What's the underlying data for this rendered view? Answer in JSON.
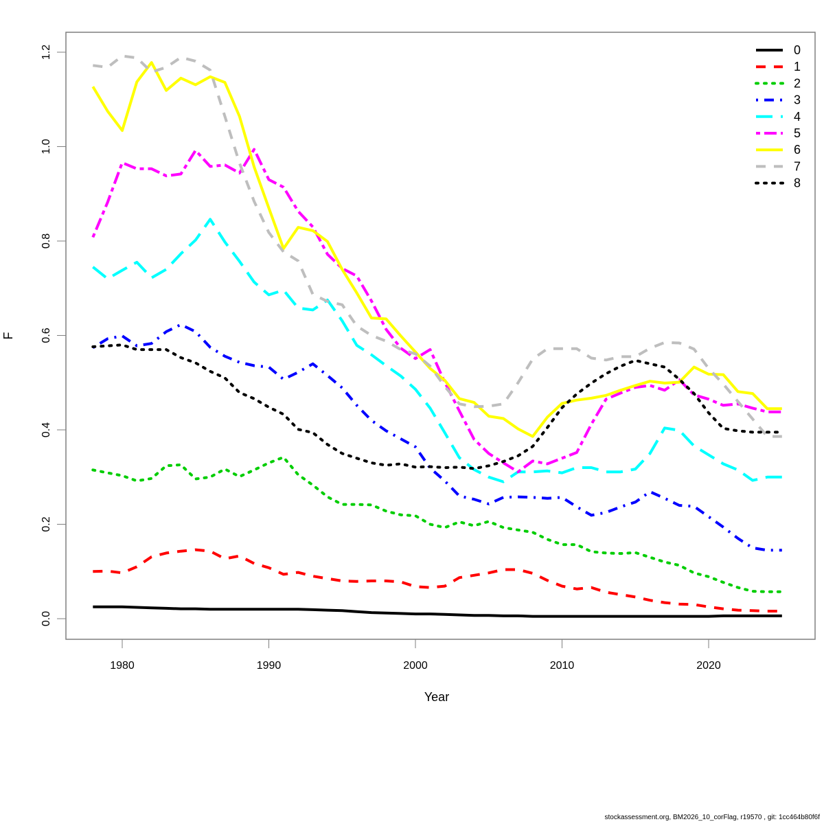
{
  "chart_data": {
    "type": "line",
    "title": "",
    "xlabel": "Year",
    "ylabel": "F",
    "xlim": [
      1978,
      2025
    ],
    "ylim": [
      0,
      1.2
    ],
    "x_ticks": [
      1980,
      1990,
      2000,
      2010,
      2020
    ],
    "y_ticks": [
      "0.0",
      "0.2",
      "0.4",
      "0.6",
      "0.8",
      "1.0",
      "1.2"
    ],
    "grid": false,
    "legend_position": "top-right",
    "x": [
      1978,
      1979,
      1980,
      1981,
      1982,
      1983,
      1984,
      1985,
      1986,
      1987,
      1988,
      1989,
      1990,
      1991,
      1992,
      1993,
      1994,
      1995,
      1996,
      1997,
      1998,
      1999,
      2000,
      2001,
      2002,
      2003,
      2004,
      2005,
      2006,
      2007,
      2008,
      2009,
      2010,
      2011,
      2012,
      2013,
      2014,
      2015,
      2016,
      2017,
      2018,
      2019,
      2020,
      2021,
      2022,
      2023,
      2024,
      2025
    ],
    "series": [
      {
        "name": "0",
        "color": "#000000",
        "dash": "solid",
        "width": 4,
        "values": [
          0.025,
          0.025,
          0.025,
          0.024,
          0.023,
          0.022,
          0.021,
          0.021,
          0.02,
          0.02,
          0.02,
          0.02,
          0.02,
          0.02,
          0.02,
          0.019,
          0.018,
          0.017,
          0.015,
          0.013,
          0.012,
          0.011,
          0.01,
          0.01,
          0.009,
          0.008,
          0.007,
          0.007,
          0.006,
          0.006,
          0.005,
          0.005,
          0.005,
          0.005,
          0.005,
          0.005,
          0.005,
          0.005,
          0.005,
          0.005,
          0.005,
          0.005,
          0.005,
          0.006,
          0.006,
          0.006,
          0.006,
          0.006
        ]
      },
      {
        "name": "1",
        "color": "#ff0000",
        "dash": "dashed",
        "width": 4,
        "values": [
          0.1,
          0.101,
          0.097,
          0.11,
          0.131,
          0.139,
          0.143,
          0.146,
          0.143,
          0.127,
          0.133,
          0.117,
          0.108,
          0.094,
          0.098,
          0.09,
          0.085,
          0.08,
          0.079,
          0.08,
          0.08,
          0.078,
          0.068,
          0.066,
          0.069,
          0.087,
          0.092,
          0.097,
          0.104,
          0.104,
          0.096,
          0.081,
          0.069,
          0.063,
          0.066,
          0.056,
          0.051,
          0.046,
          0.039,
          0.034,
          0.031,
          0.03,
          0.025,
          0.021,
          0.018,
          0.017,
          0.016,
          0.016
        ]
      },
      {
        "name": "2",
        "color": "#00cd00",
        "dash": "dotted",
        "width": 4,
        "values": [
          0.315,
          0.309,
          0.303,
          0.292,
          0.297,
          0.324,
          0.326,
          0.296,
          0.3,
          0.317,
          0.301,
          0.315,
          0.33,
          0.342,
          0.305,
          0.283,
          0.258,
          0.242,
          0.242,
          0.241,
          0.228,
          0.22,
          0.218,
          0.2,
          0.193,
          0.205,
          0.197,
          0.206,
          0.193,
          0.188,
          0.183,
          0.168,
          0.157,
          0.157,
          0.142,
          0.139,
          0.138,
          0.14,
          0.13,
          0.12,
          0.113,
          0.097,
          0.089,
          0.077,
          0.066,
          0.058,
          0.057,
          0.057
        ]
      },
      {
        "name": "3",
        "color": "#0000ff",
        "dash": "dashdot",
        "width": 4,
        "values": [
          0.574,
          0.593,
          0.599,
          0.578,
          0.583,
          0.608,
          0.623,
          0.608,
          0.575,
          0.556,
          0.543,
          0.536,
          0.533,
          0.507,
          0.522,
          0.54,
          0.515,
          0.489,
          0.452,
          0.42,
          0.398,
          0.381,
          0.364,
          0.319,
          0.292,
          0.26,
          0.253,
          0.243,
          0.257,
          0.258,
          0.257,
          0.255,
          0.257,
          0.237,
          0.219,
          0.225,
          0.237,
          0.247,
          0.269,
          0.255,
          0.24,
          0.238,
          0.216,
          0.194,
          0.17,
          0.15,
          0.145,
          0.145
        ]
      },
      {
        "name": "4",
        "color": "#00ffff",
        "dash": "longdash",
        "width": 4,
        "values": [
          0.745,
          0.72,
          0.738,
          0.755,
          0.722,
          0.74,
          0.773,
          0.802,
          0.846,
          0.798,
          0.757,
          0.713,
          0.686,
          0.696,
          0.658,
          0.654,
          0.675,
          0.631,
          0.579,
          0.559,
          0.536,
          0.514,
          0.486,
          0.446,
          0.394,
          0.341,
          0.316,
          0.3,
          0.29,
          0.311,
          0.311,
          0.313,
          0.309,
          0.32,
          0.32,
          0.311,
          0.311,
          0.317,
          0.35,
          0.404,
          0.399,
          0.366,
          0.347,
          0.328,
          0.315,
          0.293,
          0.3,
          0.3
        ]
      },
      {
        "name": "5",
        "color": "#ff00ff",
        "dash": "twodash",
        "width": 4,
        "values": [
          0.808,
          0.882,
          0.966,
          0.953,
          0.953,
          0.938,
          0.942,
          0.992,
          0.958,
          0.961,
          0.944,
          0.994,
          0.93,
          0.914,
          0.863,
          0.83,
          0.772,
          0.742,
          0.726,
          0.673,
          0.613,
          0.573,
          0.551,
          0.57,
          0.501,
          0.44,
          0.38,
          0.35,
          0.33,
          0.311,
          0.334,
          0.328,
          0.34,
          0.352,
          0.412,
          0.465,
          0.478,
          0.49,
          0.494,
          0.484,
          0.506,
          0.474,
          0.465,
          0.452,
          0.455,
          0.446,
          0.438,
          0.438
        ]
      },
      {
        "name": "6",
        "color": "#ffff00",
        "dash": "solid",
        "width": 4,
        "values": [
          1.127,
          1.075,
          1.034,
          1.137,
          1.178,
          1.119,
          1.145,
          1.131,
          1.148,
          1.136,
          1.064,
          0.957,
          0.87,
          0.784,
          0.829,
          0.822,
          0.799,
          0.74,
          0.69,
          0.637,
          0.635,
          0.599,
          0.565,
          0.53,
          0.505,
          0.466,
          0.458,
          0.429,
          0.424,
          0.402,
          0.386,
          0.427,
          0.456,
          0.463,
          0.467,
          0.473,
          0.484,
          0.494,
          0.503,
          0.499,
          0.501,
          0.533,
          0.518,
          0.517,
          0.481,
          0.477,
          0.445,
          0.445
        ]
      },
      {
        "name": "7",
        "color": "#bebebe",
        "dash": "dashed",
        "width": 4,
        "values": [
          1.172,
          1.168,
          1.192,
          1.188,
          1.158,
          1.168,
          1.189,
          1.181,
          1.162,
          1.064,
          0.965,
          0.884,
          0.818,
          0.777,
          0.758,
          0.687,
          0.672,
          0.665,
          0.62,
          0.6,
          0.588,
          0.57,
          0.561,
          0.535,
          0.492,
          0.455,
          0.449,
          0.45,
          0.455,
          0.5,
          0.55,
          0.572,
          0.572,
          0.572,
          0.552,
          0.548,
          0.555,
          0.555,
          0.573,
          0.585,
          0.584,
          0.571,
          0.53,
          0.497,
          0.46,
          0.423,
          0.386,
          0.386
        ]
      },
      {
        "name": "8",
        "color": "#000000",
        "dash": "dotted",
        "width": 4,
        "values": [
          0.576,
          0.578,
          0.58,
          0.57,
          0.57,
          0.57,
          0.553,
          0.542,
          0.524,
          0.51,
          0.479,
          0.466,
          0.448,
          0.433,
          0.401,
          0.394,
          0.369,
          0.35,
          0.34,
          0.33,
          0.325,
          0.328,
          0.321,
          0.322,
          0.32,
          0.321,
          0.318,
          0.324,
          0.333,
          0.345,
          0.365,
          0.405,
          0.447,
          0.476,
          0.499,
          0.519,
          0.535,
          0.547,
          0.54,
          0.533,
          0.507,
          0.477,
          0.436,
          0.403,
          0.398,
          0.395,
          0.395,
          0.395
        ]
      }
    ]
  },
  "footer": "stockassessment.org, BM2026_10_corFlag, r19570 , git: 1cc464b80f6f"
}
